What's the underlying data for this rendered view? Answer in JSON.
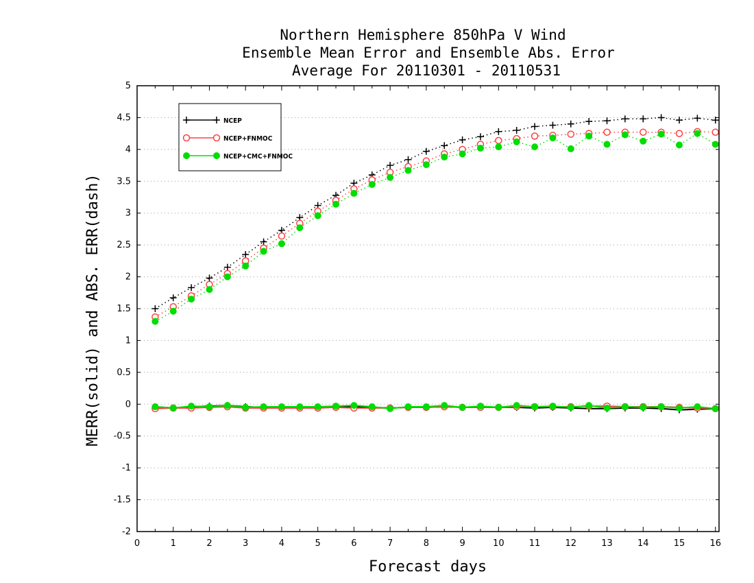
{
  "chart_data": {
    "type": "line",
    "title": [
      "Northern Hemisphere 850hPa V Wind",
      "Ensemble Mean Error and Ensemble Abs. Error",
      "Average For 20110301 - 20110531"
    ],
    "xlabel": "Forecast days",
    "ylabel": "MERR(solid) and ABS. ERR(dash)",
    "xlim": [
      0,
      16.1
    ],
    "ylim": [
      -2,
      5
    ],
    "xticks": [
      0,
      1,
      2,
      3,
      4,
      5,
      6,
      7,
      8,
      9,
      10,
      11,
      12,
      13,
      14,
      15,
      16
    ],
    "yticks": [
      -2,
      -1.5,
      -1,
      -0.5,
      0,
      0.5,
      1,
      1.5,
      2,
      2.5,
      3,
      3.5,
      4,
      4.5,
      5
    ],
    "ytick_labels": [
      "-2",
      "-1.5",
      "-1",
      "-0.5",
      "0",
      "0.5",
      "1",
      "1.5",
      "2",
      "2.5",
      "3",
      "3.5",
      "4",
      "4.5",
      "5"
    ],
    "grid": "horizontal dotted",
    "legend_position": "top-left",
    "x": [
      0.5,
      1,
      1.5,
      2,
      2.5,
      3,
      3.5,
      4,
      4.5,
      5,
      5.5,
      6,
      6.5,
      7,
      7.5,
      8,
      8.5,
      9,
      9.5,
      10,
      10.5,
      11,
      11.5,
      12,
      12.5,
      13,
      13.5,
      14,
      14.5,
      15,
      15.5,
      16
    ],
    "series": [
      {
        "name": "NCEP",
        "color": "#000000",
        "marker": "plus",
        "abs_err": [
          1.5,
          1.67,
          1.83,
          1.98,
          2.15,
          2.35,
          2.55,
          2.73,
          2.93,
          3.12,
          3.28,
          3.47,
          3.6,
          3.75,
          3.84,
          3.97,
          4.06,
          4.15,
          4.2,
          4.28,
          4.3,
          4.36,
          4.38,
          4.4,
          4.44,
          4.45,
          4.48,
          4.48,
          4.5,
          4.46,
          4.49,
          4.46
        ],
        "mean_err": [
          -0.04,
          -0.06,
          -0.04,
          -0.03,
          -0.02,
          -0.04,
          -0.05,
          -0.05,
          -0.05,
          -0.05,
          -0.04,
          -0.04,
          -0.05,
          -0.06,
          -0.05,
          -0.05,
          -0.04,
          -0.05,
          -0.05,
          -0.05,
          -0.05,
          -0.06,
          -0.05,
          -0.06,
          -0.07,
          -0.07,
          -0.06,
          -0.06,
          -0.07,
          -0.09,
          -0.08,
          -0.07
        ]
      },
      {
        "name": "NCEP+FNMOC",
        "color": "#ff4040",
        "marker": "open-circle",
        "abs_err": [
          1.37,
          1.53,
          1.7,
          1.88,
          2.05,
          2.25,
          2.45,
          2.64,
          2.84,
          3.03,
          3.2,
          3.38,
          3.52,
          3.64,
          3.73,
          3.82,
          3.93,
          4.0,
          4.08,
          4.14,
          4.17,
          4.21,
          4.22,
          4.24,
          4.25,
          4.27,
          4.27,
          4.27,
          4.27,
          4.25,
          4.28,
          4.27
        ],
        "mean_err": [
          -0.07,
          -0.06,
          -0.06,
          -0.05,
          -0.04,
          -0.06,
          -0.06,
          -0.06,
          -0.06,
          -0.06,
          -0.05,
          -0.06,
          -0.06,
          -0.06,
          -0.05,
          -0.05,
          -0.04,
          -0.05,
          -0.05,
          -0.05,
          -0.04,
          -0.04,
          -0.04,
          -0.04,
          -0.03,
          -0.03,
          -0.04,
          -0.04,
          -0.04,
          -0.05,
          -0.06,
          -0.07
        ]
      },
      {
        "name": "NCEP+CMC+FNMOC",
        "color": "#00dd00",
        "marker": "filled-circle",
        "abs_err": [
          1.3,
          1.46,
          1.65,
          1.8,
          2.0,
          2.17,
          2.4,
          2.52,
          2.77,
          2.96,
          3.14,
          3.31,
          3.45,
          3.56,
          3.67,
          3.76,
          3.88,
          3.93,
          4.02,
          4.04,
          4.12,
          4.04,
          4.18,
          4.01,
          4.21,
          4.08,
          4.23,
          4.13,
          4.24,
          4.07,
          4.25,
          4.08
        ],
        "mean_err": [
          -0.04,
          -0.06,
          -0.03,
          -0.04,
          -0.02,
          -0.05,
          -0.04,
          -0.04,
          -0.04,
          -0.04,
          -0.03,
          -0.02,
          -0.04,
          -0.07,
          -0.04,
          -0.04,
          -0.02,
          -0.05,
          -0.03,
          -0.05,
          -0.02,
          -0.04,
          -0.03,
          -0.05,
          -0.02,
          -0.06,
          -0.04,
          -0.05,
          -0.04,
          -0.06,
          -0.04,
          -0.07
        ]
      }
    ]
  }
}
